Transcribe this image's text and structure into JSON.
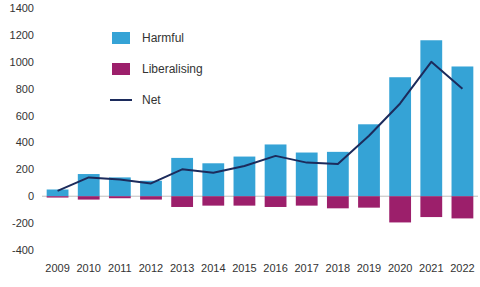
{
  "chart_data": {
    "type": "bar",
    "stacked": true,
    "legend": "upper left",
    "categories": [
      "2009",
      "2010",
      "2011",
      "2012",
      "2013",
      "2014",
      "2015",
      "2016",
      "2017",
      "2018",
      "2019",
      "2020",
      "2021",
      "2022"
    ],
    "series": [
      {
        "name": "Harmful",
        "type": "bar",
        "color": "#35a3d6",
        "values": [
          50,
          165,
          140,
          115,
          285,
          245,
          295,
          385,
          325,
          330,
          535,
          885,
          1160,
          965
        ]
      },
      {
        "name": "Liberalising",
        "type": "bar",
        "color": "#9c1f6b",
        "values": [
          -10,
          -25,
          -15,
          -25,
          -80,
          -70,
          -70,
          -80,
          -70,
          -90,
          -85,
          -195,
          -155,
          -165
        ]
      },
      {
        "name": "Net",
        "type": "line",
        "color": "#1c2b5c",
        "values": [
          40,
          140,
          125,
          95,
          200,
          175,
          225,
          300,
          250,
          240,
          450,
          690,
          1000,
          800
        ]
      }
    ],
    "ylim": [
      -400,
      1400
    ],
    "yticks": [
      -400,
      -200,
      0,
      200,
      400,
      600,
      800,
      1000,
      1200,
      1400
    ]
  }
}
